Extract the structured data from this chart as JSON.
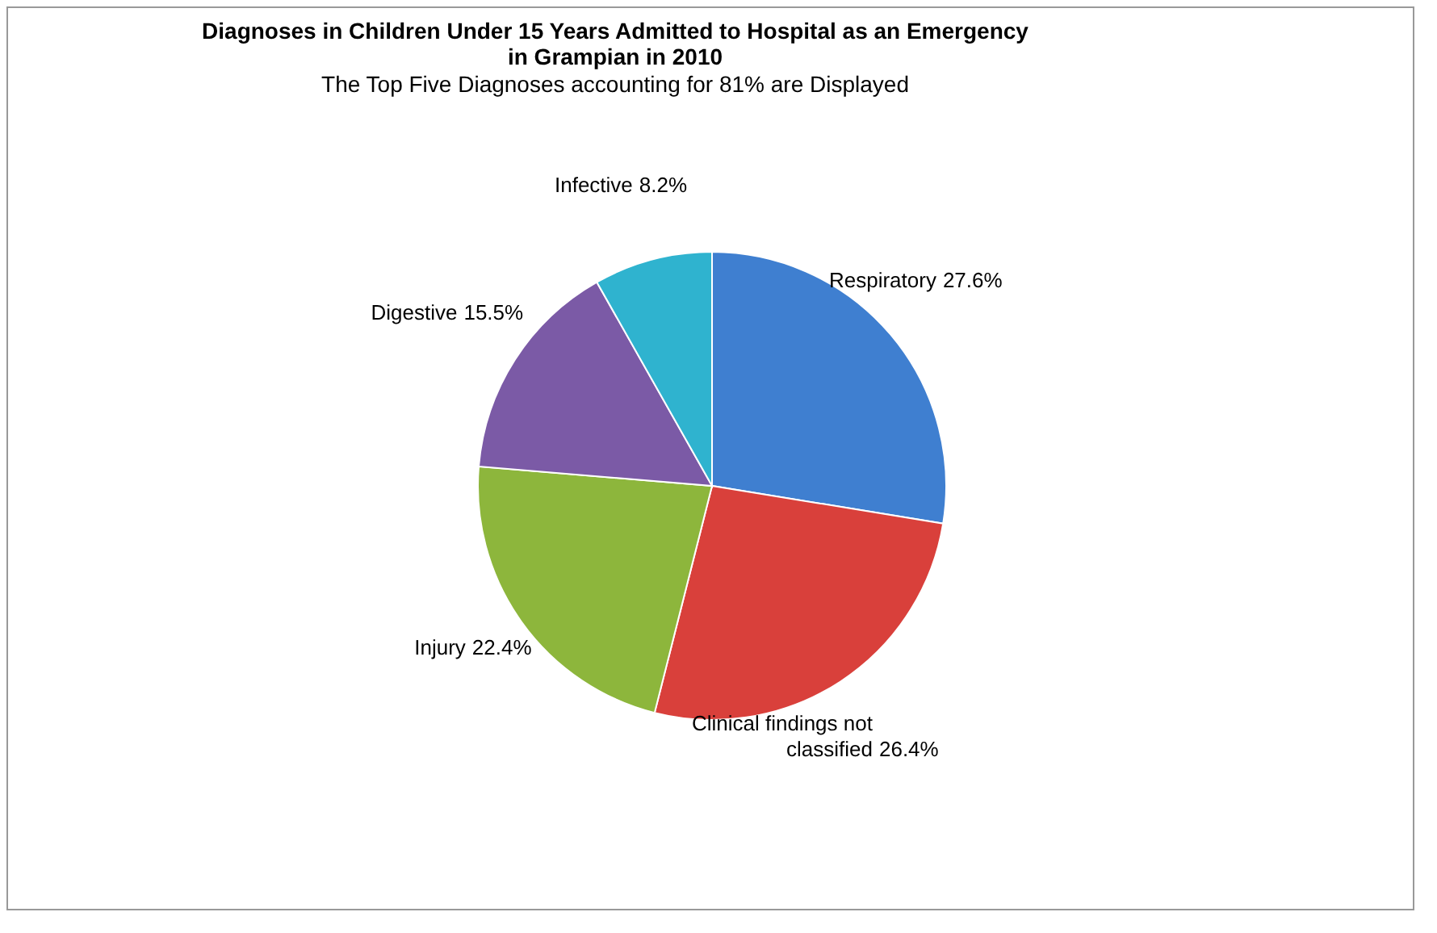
{
  "chart_data": {
    "type": "pie",
    "title": "Diagnoses in Children Under 15 Years Admitted to Hospital as an Emergency in Grampian in 2010",
    "subtitle": "The Top Five Diagnoses accounting for 81% are Displayed",
    "categories": [
      "Respiratory",
      "Clinical findings not classified",
      "Injury",
      "Digestive",
      "Infective"
    ],
    "values": [
      27.6,
      26.4,
      22.4,
      15.5,
      8.2
    ],
    "colors": [
      "#3f7fd0",
      "#d9403b",
      "#8db63c",
      "#7b5aa6",
      "#2fb3cf"
    ],
    "value_labels": [
      "27.6%",
      "26.4%",
      "22.4%",
      "15.5%",
      "8.2%"
    ],
    "legend": false
  }
}
